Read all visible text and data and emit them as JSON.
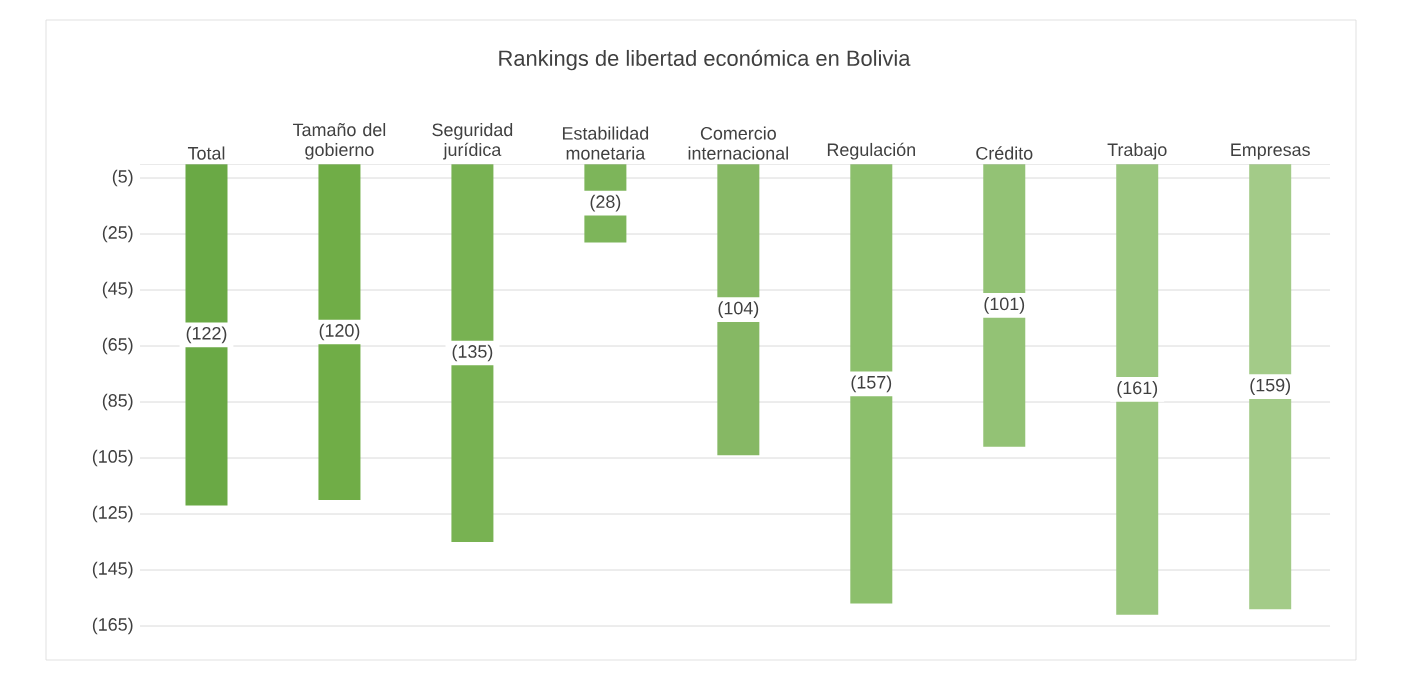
{
  "chart_data": {
    "type": "bar",
    "title": "Rankings de libertad económica en Bolivia",
    "categories": [
      "Total",
      "Tamaño del gobierno",
      "Seguridad jurídica",
      "Estabilidad monetaria",
      "Comercio internacional",
      "Regulación",
      "Crédito",
      "Trabajo",
      "Empresas"
    ],
    "values": [
      122,
      120,
      135,
      28,
      104,
      157,
      101,
      161,
      159
    ],
    "colors": [
      "#6aa945",
      "#70ad47",
      "#78b252",
      "#7db55a",
      "#86b864",
      "#8cbf6c",
      "#93c275",
      "#9ac67e",
      "#a3cb88"
    ],
    "value_labels": [
      "(122)",
      "(120)",
      "(135)",
      "(28)",
      "(104)",
      "(157)",
      "(101)",
      "(161)",
      "(159)"
    ],
    "ylim": [
      165,
      0
    ],
    "yticks": [
      {
        "value": 5,
        "label": "(5)"
      },
      {
        "value": 25,
        "label": "(25)"
      },
      {
        "value": 45,
        "label": "(45)"
      },
      {
        "value": 65,
        "label": "(65)"
      },
      {
        "value": 85,
        "label": "(85)"
      },
      {
        "value": 105,
        "label": "(105)"
      },
      {
        "value": 125,
        "label": "(125)"
      },
      {
        "value": 145,
        "label": "(145)"
      },
      {
        "value": 165,
        "label": "(165)"
      }
    ],
    "grid": "y"
  }
}
